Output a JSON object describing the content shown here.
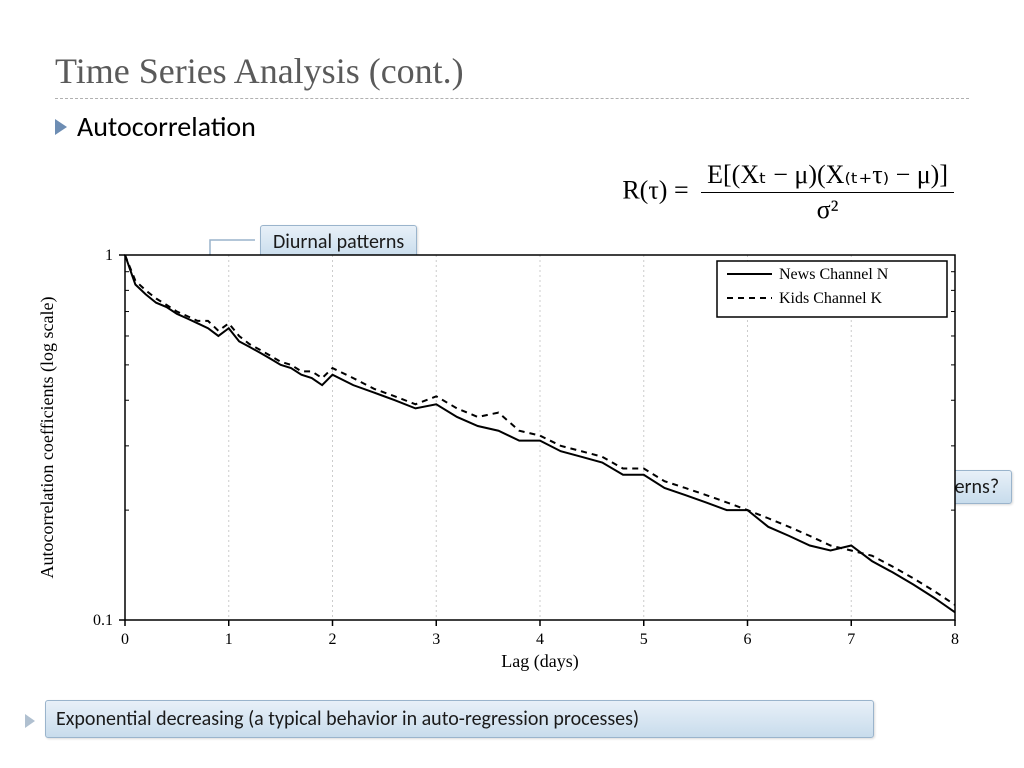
{
  "title": "Time Series Analysis (cont.)",
  "bullet": "Autocorrelation",
  "formula": {
    "lhs": "R(τ) = ",
    "numerator": "E[(Xₜ − μ)(X₍ₜ₊τ₎ − μ)]",
    "denominator": "σ²"
  },
  "callouts": {
    "diurnal": "Diurnal patterns",
    "weekly": "Weekly patterns?"
  },
  "footer": "Exponential decreasing (a typical behavior in auto-regression processes)",
  "chart": {
    "type": "line",
    "xlabel": "Lag (days)",
    "ylabel": "Autocorrelation coefficients (log scale)",
    "label_fontsize": 18,
    "tick_fontsize": 16,
    "xlim": [
      0,
      8
    ],
    "xtick_step": 1,
    "yscale": "log",
    "ylim": [
      0.1,
      1.0
    ],
    "yticks": [
      0.1,
      1.0
    ],
    "ytick_labels": [
      "0.1",
      "1"
    ],
    "background_color": "#ffffff",
    "axis_color": "#000000",
    "grid_color": "#cccccc",
    "line_width": 2,
    "legend": {
      "position": "top-right",
      "border_color": "#000000",
      "entries": [
        "News Channel N",
        "Kids Channel K"
      ]
    },
    "series": [
      {
        "name": "News Channel N",
        "color": "#000000",
        "dash": "solid",
        "x": [
          0,
          0.1,
          0.2,
          0.3,
          0.4,
          0.5,
          0.6,
          0.7,
          0.8,
          0.9,
          1.0,
          1.1,
          1.2,
          1.3,
          1.4,
          1.5,
          1.6,
          1.7,
          1.8,
          1.9,
          2.0,
          2.2,
          2.4,
          2.6,
          2.8,
          3.0,
          3.2,
          3.4,
          3.6,
          3.8,
          4.0,
          4.2,
          4.4,
          4.6,
          4.8,
          5.0,
          5.2,
          5.4,
          5.6,
          5.8,
          6.0,
          6.2,
          6.4,
          6.6,
          6.8,
          7.0,
          7.2,
          7.4,
          7.6,
          7.8,
          8.0
        ],
        "y": [
          1.0,
          0.83,
          0.78,
          0.74,
          0.72,
          0.69,
          0.67,
          0.65,
          0.63,
          0.6,
          0.63,
          0.58,
          0.56,
          0.54,
          0.52,
          0.5,
          0.49,
          0.47,
          0.46,
          0.44,
          0.47,
          0.44,
          0.42,
          0.4,
          0.38,
          0.39,
          0.36,
          0.34,
          0.33,
          0.31,
          0.31,
          0.29,
          0.28,
          0.27,
          0.25,
          0.25,
          0.23,
          0.22,
          0.21,
          0.2,
          0.2,
          0.18,
          0.17,
          0.16,
          0.155,
          0.16,
          0.145,
          0.135,
          0.125,
          0.115,
          0.105
        ]
      },
      {
        "name": "Kids Channel K",
        "color": "#000000",
        "dash": "6,5",
        "x": [
          0,
          0.1,
          0.2,
          0.3,
          0.4,
          0.5,
          0.6,
          0.7,
          0.8,
          0.9,
          1.0,
          1.1,
          1.2,
          1.3,
          1.4,
          1.5,
          1.6,
          1.7,
          1.8,
          1.9,
          2.0,
          2.2,
          2.4,
          2.6,
          2.8,
          3.0,
          3.2,
          3.4,
          3.6,
          3.8,
          4.0,
          4.2,
          4.4,
          4.6,
          4.8,
          5.0,
          5.2,
          5.4,
          5.6,
          5.8,
          6.0,
          6.2,
          6.4,
          6.6,
          6.8,
          7.0,
          7.2,
          7.4,
          7.6,
          7.8,
          8.0
        ],
        "y": [
          1.0,
          0.85,
          0.8,
          0.76,
          0.73,
          0.7,
          0.68,
          0.66,
          0.66,
          0.62,
          0.65,
          0.6,
          0.57,
          0.55,
          0.53,
          0.51,
          0.5,
          0.48,
          0.48,
          0.46,
          0.49,
          0.46,
          0.43,
          0.41,
          0.39,
          0.41,
          0.38,
          0.36,
          0.37,
          0.33,
          0.32,
          0.3,
          0.29,
          0.28,
          0.26,
          0.26,
          0.24,
          0.23,
          0.22,
          0.21,
          0.2,
          0.19,
          0.18,
          0.17,
          0.16,
          0.155,
          0.15,
          0.14,
          0.13,
          0.12,
          0.11
        ]
      }
    ]
  }
}
